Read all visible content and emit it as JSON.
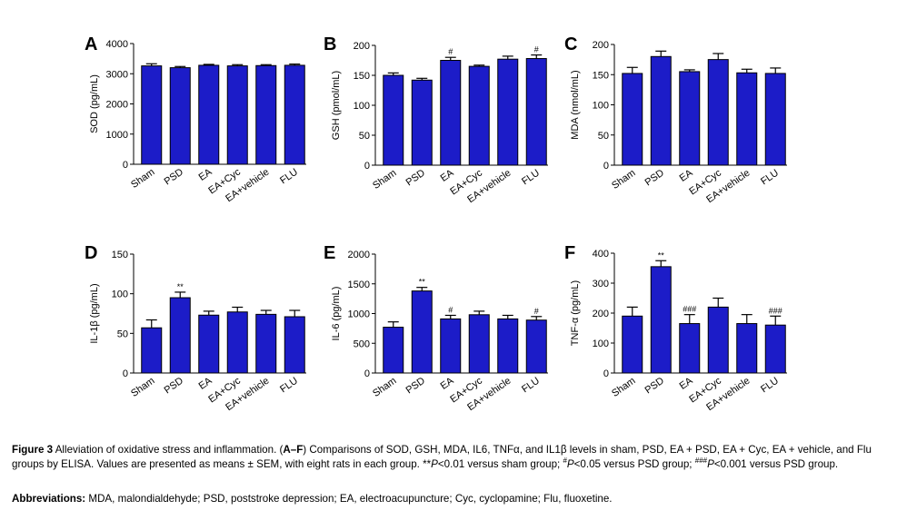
{
  "colors": {
    "bar": "#1c1cc8",
    "edge": "#000000"
  },
  "chart_data": [
    {
      "type": "bar",
      "letter": "A",
      "ylabel": "SOD (pg/mL)",
      "categories": [
        "Sham",
        "PSD",
        "EA",
        "EA+Cyc",
        "EA+vehicle",
        "FLU"
      ],
      "values": [
        3260,
        3200,
        3280,
        3260,
        3270,
        3280
      ],
      "errors": [
        70,
        40,
        30,
        40,
        30,
        40
      ],
      "sig": [
        "",
        "",
        "",
        "",
        "",
        ""
      ],
      "ylim": [
        0,
        4000
      ],
      "yticks": [
        0,
        1000,
        2000,
        3000,
        4000
      ]
    },
    {
      "type": "bar",
      "letter": "B",
      "ylabel": "GSH (pmol/mL)",
      "categories": [
        "Sham",
        "PSD",
        "EA",
        "EA+Cyc",
        "EA+vehicle",
        "FLU"
      ],
      "values": [
        150,
        142,
        175,
        165,
        177,
        178
      ],
      "errors": [
        4,
        3,
        5,
        2,
        5,
        6
      ],
      "sig": [
        "",
        "",
        "#",
        "",
        "",
        "#"
      ],
      "ylim": [
        0,
        200
      ],
      "yticks": [
        0,
        50,
        100,
        150,
        200
      ]
    },
    {
      "type": "bar",
      "letter": "C",
      "ylabel": "MDA (nmol/mL)",
      "categories": [
        "Sham",
        "PSD",
        "EA",
        "EA+Cyc",
        "EA+vehicle",
        "FLU"
      ],
      "values": [
        152,
        180,
        155,
        175,
        153,
        152
      ],
      "errors": [
        10,
        9,
        3,
        10,
        6,
        9
      ],
      "sig": [
        "",
        "",
        "",
        "",
        "",
        ""
      ],
      "ylim": [
        0,
        200
      ],
      "yticks": [
        0,
        50,
        100,
        150,
        200
      ]
    },
    {
      "type": "bar",
      "letter": "D",
      "ylabel": "IL-1β (pg/mL)",
      "categories": [
        "Sham",
        "PSD",
        "EA",
        "EA+Cyc",
        "EA+vehicle",
        "FLU"
      ],
      "values": [
        57,
        95,
        73,
        77,
        74,
        71
      ],
      "errors": [
        10,
        7,
        5,
        6,
        5,
        8
      ],
      "sig": [
        "",
        "**",
        "",
        "",
        "",
        ""
      ],
      "ylim": [
        0,
        150
      ],
      "yticks": [
        0,
        50,
        100,
        150
      ]
    },
    {
      "type": "bar",
      "letter": "E",
      "ylabel": "IL-6 (pg/mL)",
      "categories": [
        "Sham",
        "PSD",
        "EA",
        "EA+Cyc",
        "EA+vehicle",
        "FLU"
      ],
      "values": [
        770,
        1380,
        910,
        980,
        910,
        890
      ],
      "errors": [
        90,
        60,
        60,
        60,
        60,
        60
      ],
      "sig": [
        "",
        "**",
        "#",
        "",
        "",
        "#"
      ],
      "ylim": [
        0,
        2000
      ],
      "yticks": [
        0,
        500,
        1000,
        1500,
        2000
      ]
    },
    {
      "type": "bar",
      "letter": "F",
      "ylabel": "TNF-α (pg/mL)",
      "categories": [
        "Sham",
        "PSD",
        "EA",
        "EA+Cyc",
        "EA+vehicle",
        "FLU"
      ],
      "values": [
        190,
        355,
        165,
        220,
        165,
        160
      ],
      "errors": [
        30,
        20,
        30,
        30,
        30,
        30
      ],
      "sig": [
        "",
        "**",
        "###",
        "",
        "",
        "###"
      ],
      "ylim": [
        0,
        400
      ],
      "yticks": [
        0,
        100,
        200,
        300,
        400
      ]
    }
  ],
  "caption": {
    "figure_label": "Figure 3",
    "title": "Alleviation of oxidative stress and inflammation.",
    "panels_label": "A–F",
    "text_1": "Comparisons of SOD, GSH, MDA, IL6, TNFα, and IL1β levels in sham, PSD, EA + PSD, EA + Cyc, EA + vehicle, and Flu groups by ELISA. Values are presented as means ± SEM, with eight rats in each group. **",
    "p_1": "P",
    "text_2": "<0.01 versus sham group; ",
    "sup_1": "#",
    "p_2": "P",
    "text_3": "<0.05 versus PSD group; ",
    "sup_2": "###",
    "p_3": "P",
    "text_4": "<0.001 versus PSD group.",
    "abbrev_label": "Abbreviations:",
    "abbrev_text": "MDA, malondialdehyde; PSD, poststroke depression; EA, electroacupuncture; Cyc, cyclopamine; Flu, fluoxetine."
  }
}
